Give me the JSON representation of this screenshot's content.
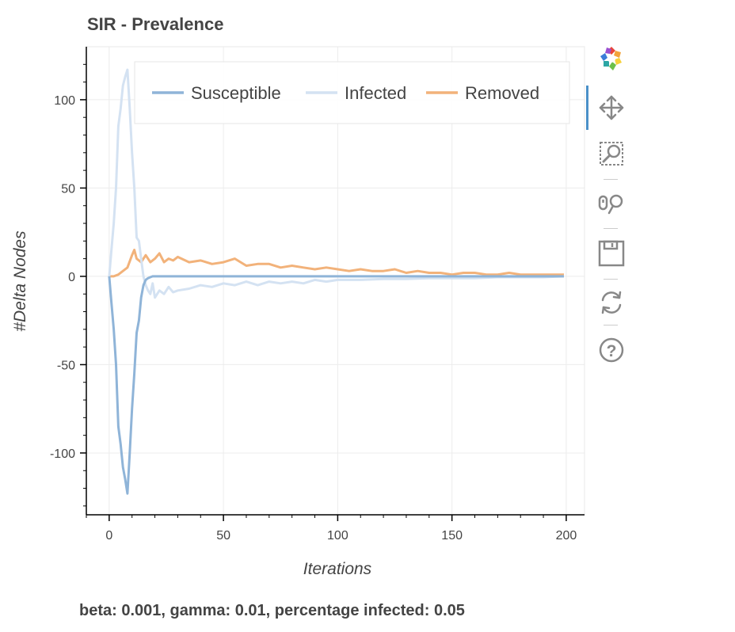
{
  "title": "SIR - Prevalence",
  "caption": "beta: 0.001, gamma: 0.01, percentage infected: 0.05",
  "toolbar": {
    "tools": [
      "bokeh-logo-icon",
      "pan-icon",
      "box-zoom-icon",
      "wheel-zoom-icon",
      "save-icon",
      "reset-icon",
      "help-icon"
    ],
    "active": "pan-icon"
  },
  "chart_data": {
    "type": "line",
    "xlabel": "Iterations",
    "ylabel": "#Delta Nodes",
    "xlim": [
      -10,
      208
    ],
    "ylim": [
      -135,
      130
    ],
    "xticks": [
      0,
      50,
      100,
      150,
      200
    ],
    "yticks": [
      -100,
      -50,
      0,
      50,
      100
    ],
    "grid": true,
    "legend_position": "top",
    "series": [
      {
        "name": "Susceptible",
        "color": "#8fb4d8",
        "x": [
          0,
          1,
          2,
          3,
          4,
          5,
          6,
          7,
          8,
          9,
          10,
          11,
          12,
          13,
          14,
          15,
          16,
          17,
          18,
          19,
          20,
          30,
          50,
          100,
          150,
          199
        ],
        "y": [
          0,
          -15,
          -30,
          -50,
          -85,
          -95,
          -108,
          -115,
          -123,
          -100,
          -75,
          -55,
          -32,
          -25,
          -12,
          -5,
          -2,
          -1,
          -0.5,
          0,
          0,
          0,
          0,
          0,
          0,
          0
        ]
      },
      {
        "name": "Infected",
        "color": "#d4e2f2",
        "x": [
          0,
          1,
          2,
          3,
          4,
          5,
          6,
          7,
          8,
          9,
          10,
          11,
          12,
          13,
          14,
          15,
          16,
          17,
          18,
          19,
          20,
          22,
          24,
          26,
          28,
          30,
          35,
          40,
          45,
          50,
          55,
          60,
          65,
          70,
          75,
          80,
          85,
          90,
          95,
          100,
          110,
          120,
          130,
          140,
          150,
          160,
          170,
          180,
          190,
          199
        ],
        "y": [
          0,
          15,
          30,
          50,
          85,
          95,
          108,
          113,
          117,
          95,
          70,
          50,
          22,
          20,
          10,
          0,
          -5,
          -8,
          -10,
          -4,
          -12,
          -8,
          -10,
          -6,
          -9,
          -8,
          -7,
          -5,
          -6,
          -4,
          -5,
          -3,
          -5,
          -3,
          -4,
          -3,
          -4,
          -2,
          -3,
          -2,
          -2,
          -1.5,
          -1.5,
          -1,
          -1,
          -1,
          -0.5,
          -0.5,
          -0.5,
          0
        ]
      },
      {
        "name": "Removed",
        "color": "#f2b27a",
        "x": [
          0,
          2,
          4,
          6,
          8,
          10,
          11,
          12,
          14,
          16,
          18,
          20,
          22,
          24,
          26,
          28,
          30,
          35,
          40,
          45,
          50,
          55,
          60,
          65,
          70,
          75,
          80,
          85,
          90,
          95,
          100,
          105,
          110,
          115,
          120,
          125,
          130,
          135,
          140,
          145,
          150,
          155,
          160,
          165,
          170,
          175,
          180,
          185,
          190,
          195,
          199
        ],
        "y": [
          0,
          0,
          1,
          3,
          5,
          12,
          15,
          10,
          8,
          12,
          8,
          10,
          13,
          8,
          10,
          9,
          11,
          8,
          9,
          7,
          8,
          10,
          6,
          7,
          7,
          5,
          6,
          5,
          4,
          5,
          4,
          3,
          4,
          3,
          3,
          4,
          2,
          3,
          2,
          2,
          1,
          2,
          2,
          1,
          1,
          2,
          1,
          1,
          1,
          1,
          1
        ]
      }
    ]
  }
}
